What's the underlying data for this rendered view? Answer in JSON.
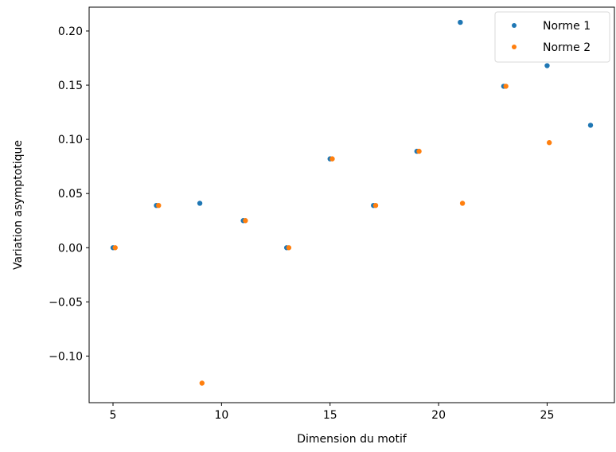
{
  "chart_data": {
    "type": "scatter",
    "xlabel": "Dimension du motif",
    "ylabel": "Variation asymptotique",
    "xlim": [
      3.9,
      28.1
    ],
    "ylim": [
      -0.143,
      0.222
    ],
    "xticks": [
      5,
      10,
      15,
      20,
      25
    ],
    "yticks": [
      -0.1,
      -0.05,
      0.0,
      0.05,
      0.1,
      0.15,
      0.2
    ],
    "ytick_labels": [
      "−0.10",
      "−0.05",
      "0.00",
      "0.05",
      "0.10",
      "0.15",
      "0.20"
    ],
    "grid": false,
    "legend_position": "top-right",
    "series": [
      {
        "name": "Norme 1",
        "color": "#1f77b4",
        "x": [
          5,
          7,
          9,
          11,
          13,
          15,
          17,
          19,
          21,
          23,
          25,
          27
        ],
        "y": [
          0.0,
          0.039,
          0.041,
          0.025,
          0.0,
          0.082,
          0.039,
          0.089,
          0.208,
          0.149,
          0.168,
          0.113
        ]
      },
      {
        "name": "Norme 2",
        "color": "#ff7f0e",
        "x": [
          5.1,
          7.1,
          9.1,
          11.1,
          13.1,
          15.1,
          17.1,
          19.1,
          21.1,
          23.1,
          25.1
        ],
        "y": [
          0.0,
          0.039,
          -0.125,
          0.025,
          0.0,
          0.082,
          0.039,
          0.089,
          0.041,
          0.149,
          0.097
        ]
      }
    ]
  }
}
